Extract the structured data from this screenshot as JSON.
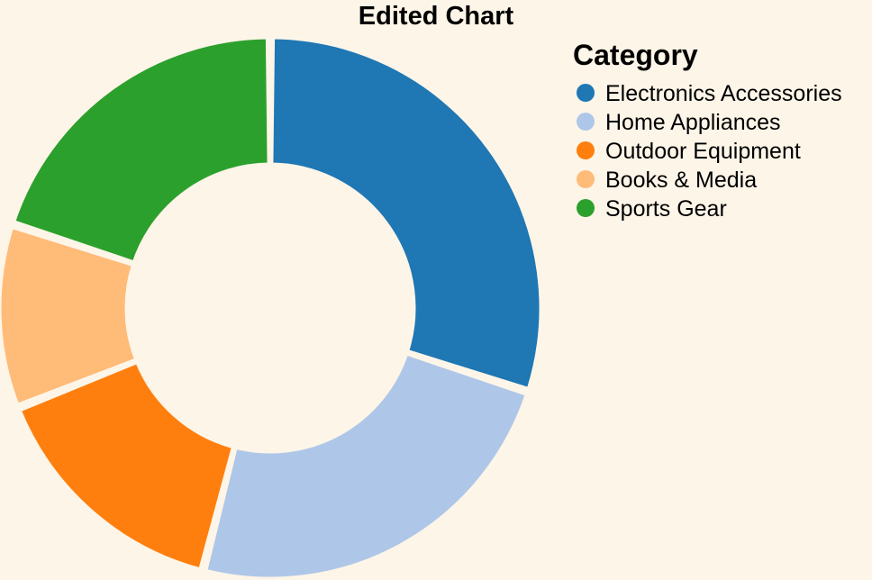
{
  "chart_data": {
    "type": "pie",
    "variant": "donut",
    "title": "Edited Chart",
    "legend": {
      "title": "Category",
      "position": "top-right"
    },
    "categories": [
      "Electronics Accessories",
      "Home Appliances",
      "Outdoor Equipment",
      "Books & Media",
      "Sports Gear"
    ],
    "values": [
      30,
      24,
      15,
      11,
      20
    ],
    "colors": [
      "#1f77b4",
      "#aec7e8",
      "#ff7f0e",
      "#ffbb78",
      "#2ca02c"
    ]
  }
}
